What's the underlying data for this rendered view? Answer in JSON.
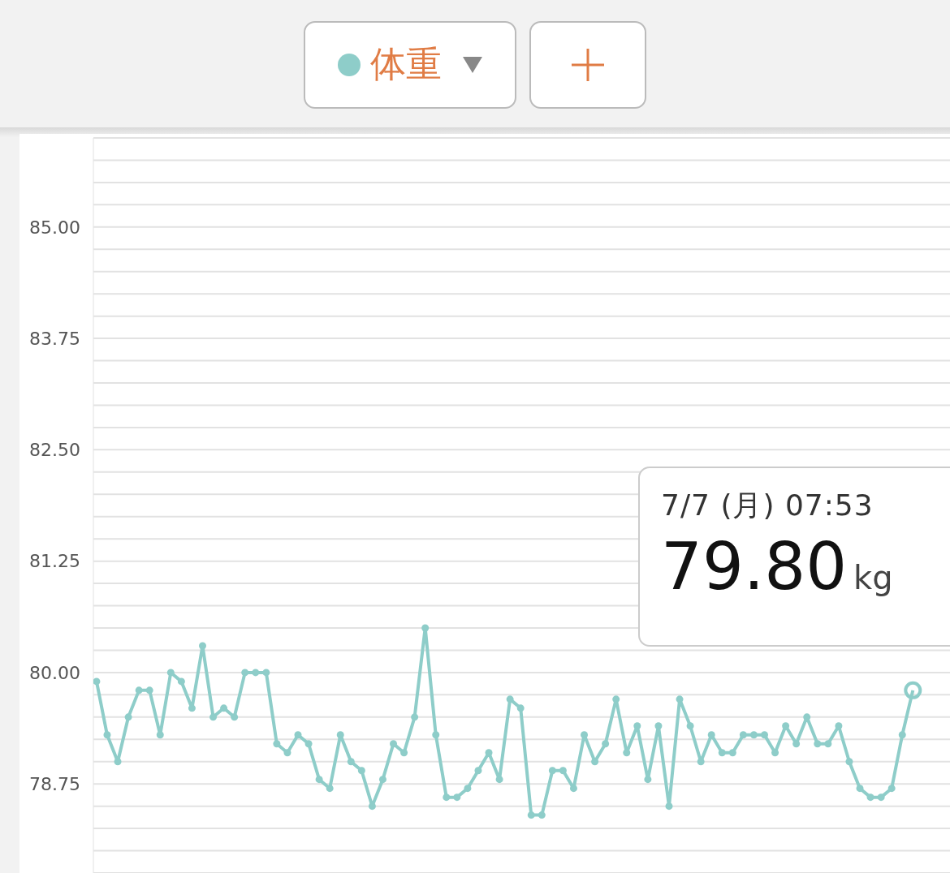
{
  "chart_data": {
    "type": "line",
    "categories": [
      null,
      null,
      null,
      null,
      null,
      null,
      null,
      null,
      null,
      null,
      null,
      null,
      null,
      null,
      null,
      null,
      null,
      null,
      null,
      null,
      null,
      null,
      null,
      null,
      null,
      null,
      null,
      null,
      null,
      null,
      null,
      null,
      null,
      null,
      null,
      null,
      null,
      null,
      null,
      null,
      null,
      null,
      null,
      null,
      null,
      null,
      null,
      null,
      null,
      null,
      null,
      null,
      null,
      null,
      null,
      null,
      null,
      null,
      null,
      null,
      null,
      null,
      null,
      null,
      null,
      null,
      null,
      null,
      null,
      null,
      null,
      null,
      null,
      null,
      null,
      null,
      null,
      null
    ],
    "series": [
      {
        "name": "体重",
        "color": "#8ecdc9",
        "values": [
          79.9,
          79.3,
          79.0,
          79.5,
          79.8,
          79.8,
          79.3,
          80.0,
          79.9,
          79.6,
          80.3,
          79.5,
          79.6,
          79.5,
          80.0,
          80.0,
          80.0,
          79.2,
          79.1,
          79.3,
          79.2,
          78.8,
          78.7,
          79.3,
          79.0,
          78.9,
          78.5,
          78.8,
          79.2,
          79.1,
          79.5,
          80.5,
          79.3,
          78.6,
          78.6,
          78.7,
          78.9,
          79.1,
          78.8,
          79.7,
          79.6,
          78.4,
          78.4,
          78.9,
          78.9,
          78.7,
          79.3,
          79.0,
          79.2,
          79.7,
          79.1,
          79.4,
          78.8,
          79.4,
          78.5,
          79.7,
          79.4,
          79.0,
          79.3,
          79.1,
          79.1,
          79.3,
          79.3,
          79.3,
          79.1,
          79.4,
          79.2,
          79.5,
          79.2,
          79.2,
          79.4,
          79.0,
          78.7,
          78.6,
          78.6,
          78.7,
          79.3,
          79.8
        ]
      }
    ],
    "annotations": [
      "7/7 (月) 07:53",
      "79.80",
      "kg"
    ],
    "ylim": [
      77.75,
      86
    ],
    "yticks": [
      {
        "value": 78,
        "label": null
      },
      {
        "value": 78.25,
        "label": null
      },
      {
        "value": 78.5,
        "label": null
      },
      {
        "value": 78.75,
        "label": "78.75"
      },
      {
        "value": 79,
        "label": null
      },
      {
        "value": 79.25,
        "label": null
      },
      {
        "value": 79.5,
        "label": null
      },
      {
        "value": 79.75,
        "label": null
      },
      {
        "value": 80,
        "label": "80.00"
      },
      {
        "value": 80.25,
        "label": null
      },
      {
        "value": 80.5,
        "label": null
      },
      {
        "value": 80.75,
        "label": null
      },
      {
        "value": 81,
        "label": null
      },
      {
        "value": 81.25,
        "label": "81.25"
      },
      {
        "value": 81.5,
        "label": null
      },
      {
        "value": 81.75,
        "label": null
      },
      {
        "value": 82,
        "label": null
      },
      {
        "value": 82.25,
        "label": null
      },
      {
        "value": 82.5,
        "label": "82.50"
      },
      {
        "value": 82.75,
        "label": null
      },
      {
        "value": 83,
        "label": null
      },
      {
        "value": 83.25,
        "label": null
      },
      {
        "value": 83.5,
        "label": null
      },
      {
        "value": 83.75,
        "label": "83.75"
      },
      {
        "value": 84,
        "label": null
      },
      {
        "value": 84.25,
        "label": null
      },
      {
        "value": 84.5,
        "label": null
      },
      {
        "value": 84.75,
        "label": null
      },
      {
        "value": 85,
        "label": "85.00"
      },
      {
        "value": 85.25,
        "label": null
      },
      {
        "value": 85.5,
        "label": null
      },
      {
        "value": 85.75,
        "label": null
      }
    ],
    "grid": "y",
    "legend": "top",
    "marker": "circle",
    "line_style": "solid"
  }
}
